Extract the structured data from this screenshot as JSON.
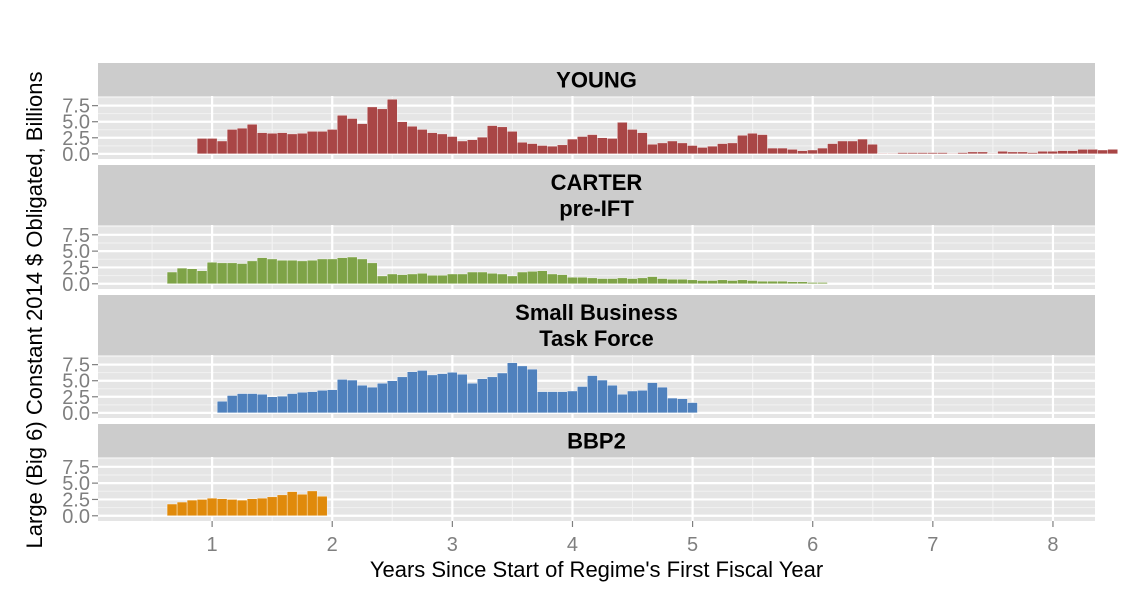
{
  "chart_data": {
    "type": "bar",
    "xlabel": "Years Since Start of Regime's First Fiscal Year",
    "ylabel": "Large (Big 6) Constant 2014 $ Obligated, Billions",
    "xlim": [
      0.05,
      8.35
    ],
    "ylim": [
      -0.8,
      9.0
    ],
    "x_ticks": [
      1,
      2,
      3,
      4,
      5,
      6,
      7,
      8
    ],
    "y_ticks": [
      0.0,
      2.5,
      5.0,
      7.5
    ],
    "x_tick_labels": [
      "1",
      "2",
      "3",
      "4",
      "5",
      "6",
      "7",
      "8"
    ],
    "y_tick_labels": [
      "0.0",
      "2.5",
      "5.0",
      "7.5"
    ],
    "bin_width": 0.0833,
    "grid": true,
    "facets": [
      {
        "label_lines": [
          "YOUNG"
        ],
        "color": "#a94646",
        "x_start": 0.875,
        "values": [
          2.4,
          2.4,
          2.0,
          3.8,
          4.0,
          4.6,
          3.3,
          3.2,
          3.3,
          3.1,
          3.2,
          3.5,
          3.5,
          3.8,
          6.0,
          5.5,
          4.7,
          7.3,
          7.0,
          8.5,
          5.0,
          4.3,
          3.8,
          3.3,
          3.1,
          2.7,
          2.0,
          2.2,
          2.6,
          4.4,
          4.2,
          3.5,
          1.8,
          1.6,
          1.3,
          1.2,
          1.4,
          2.3,
          2.7,
          3.0,
          2.5,
          2.4,
          4.9,
          3.8,
          3.3,
          1.5,
          1.7,
          2.0,
          1.7,
          1.3,
          1.0,
          1.2,
          1.6,
          1.7,
          2.9,
          3.2,
          3.0,
          0.9,
          0.9,
          0.7,
          0.5,
          0.6,
          0.9,
          1.6,
          2.0,
          2.0,
          2.3,
          1.5,
          0.1,
          0.1,
          0.2,
          0.2,
          0.2,
          0.2,
          0.2,
          0.1,
          0.2,
          0.3,
          0.3,
          0.1,
          0.4,
          0.3,
          0.3,
          0.2,
          0.4,
          0.4,
          0.5,
          0.5,
          0.7,
          0.7,
          0.6,
          0.7
        ]
      },
      {
        "label_lines": [
          "CARTER",
          "pre-IFT"
        ],
        "color": "#7ea347",
        "x_start": 0.625,
        "values": [
          1.8,
          2.4,
          2.3,
          2.0,
          3.3,
          3.2,
          3.2,
          3.1,
          3.5,
          4.0,
          3.8,
          3.6,
          3.6,
          3.5,
          3.6,
          3.8,
          3.8,
          4.0,
          4.1,
          3.8,
          3.2,
          1.2,
          1.5,
          1.4,
          1.5,
          1.6,
          1.3,
          1.3,
          1.5,
          1.5,
          1.8,
          1.8,
          1.6,
          1.5,
          1.2,
          1.8,
          1.9,
          2.0,
          1.5,
          1.4,
          1.0,
          1.0,
          0.9,
          0.8,
          0.8,
          0.9,
          0.8,
          0.9,
          1.1,
          0.8,
          0.7,
          0.7,
          0.6,
          0.5,
          0.5,
          0.6,
          0.5,
          0.6,
          0.5,
          0.4,
          0.4,
          0.4,
          0.3,
          0.3,
          0.2,
          0.2
        ]
      },
      {
        "label_lines": [
          "Small Business",
          "Task Force"
        ],
        "color": "#4f81bd",
        "x_start": 1.042,
        "values": [
          1.8,
          2.7,
          3.0,
          3.0,
          2.9,
          2.5,
          2.6,
          3.0,
          3.2,
          3.3,
          3.5,
          3.6,
          5.2,
          5.1,
          4.3,
          4.0,
          4.6,
          5.0,
          5.6,
          6.4,
          6.6,
          5.9,
          6.1,
          6.3,
          6.0,
          4.6,
          5.3,
          5.6,
          6.2,
          7.8,
          7.3,
          6.8,
          3.3,
          3.3,
          3.3,
          3.4,
          4.1,
          5.8,
          5.1,
          4.3,
          2.9,
          3.4,
          3.5,
          4.7,
          4.0,
          2.3,
          2.2,
          1.6
        ]
      },
      {
        "label_lines": [
          "BBP2"
        ],
        "color": "#e08a0b",
        "x_start": 0.625,
        "values": [
          1.8,
          2.1,
          2.4,
          2.5,
          2.7,
          2.6,
          2.5,
          2.4,
          2.6,
          2.7,
          2.9,
          3.2,
          3.7,
          3.3,
          3.8,
          3.0
        ]
      }
    ]
  }
}
